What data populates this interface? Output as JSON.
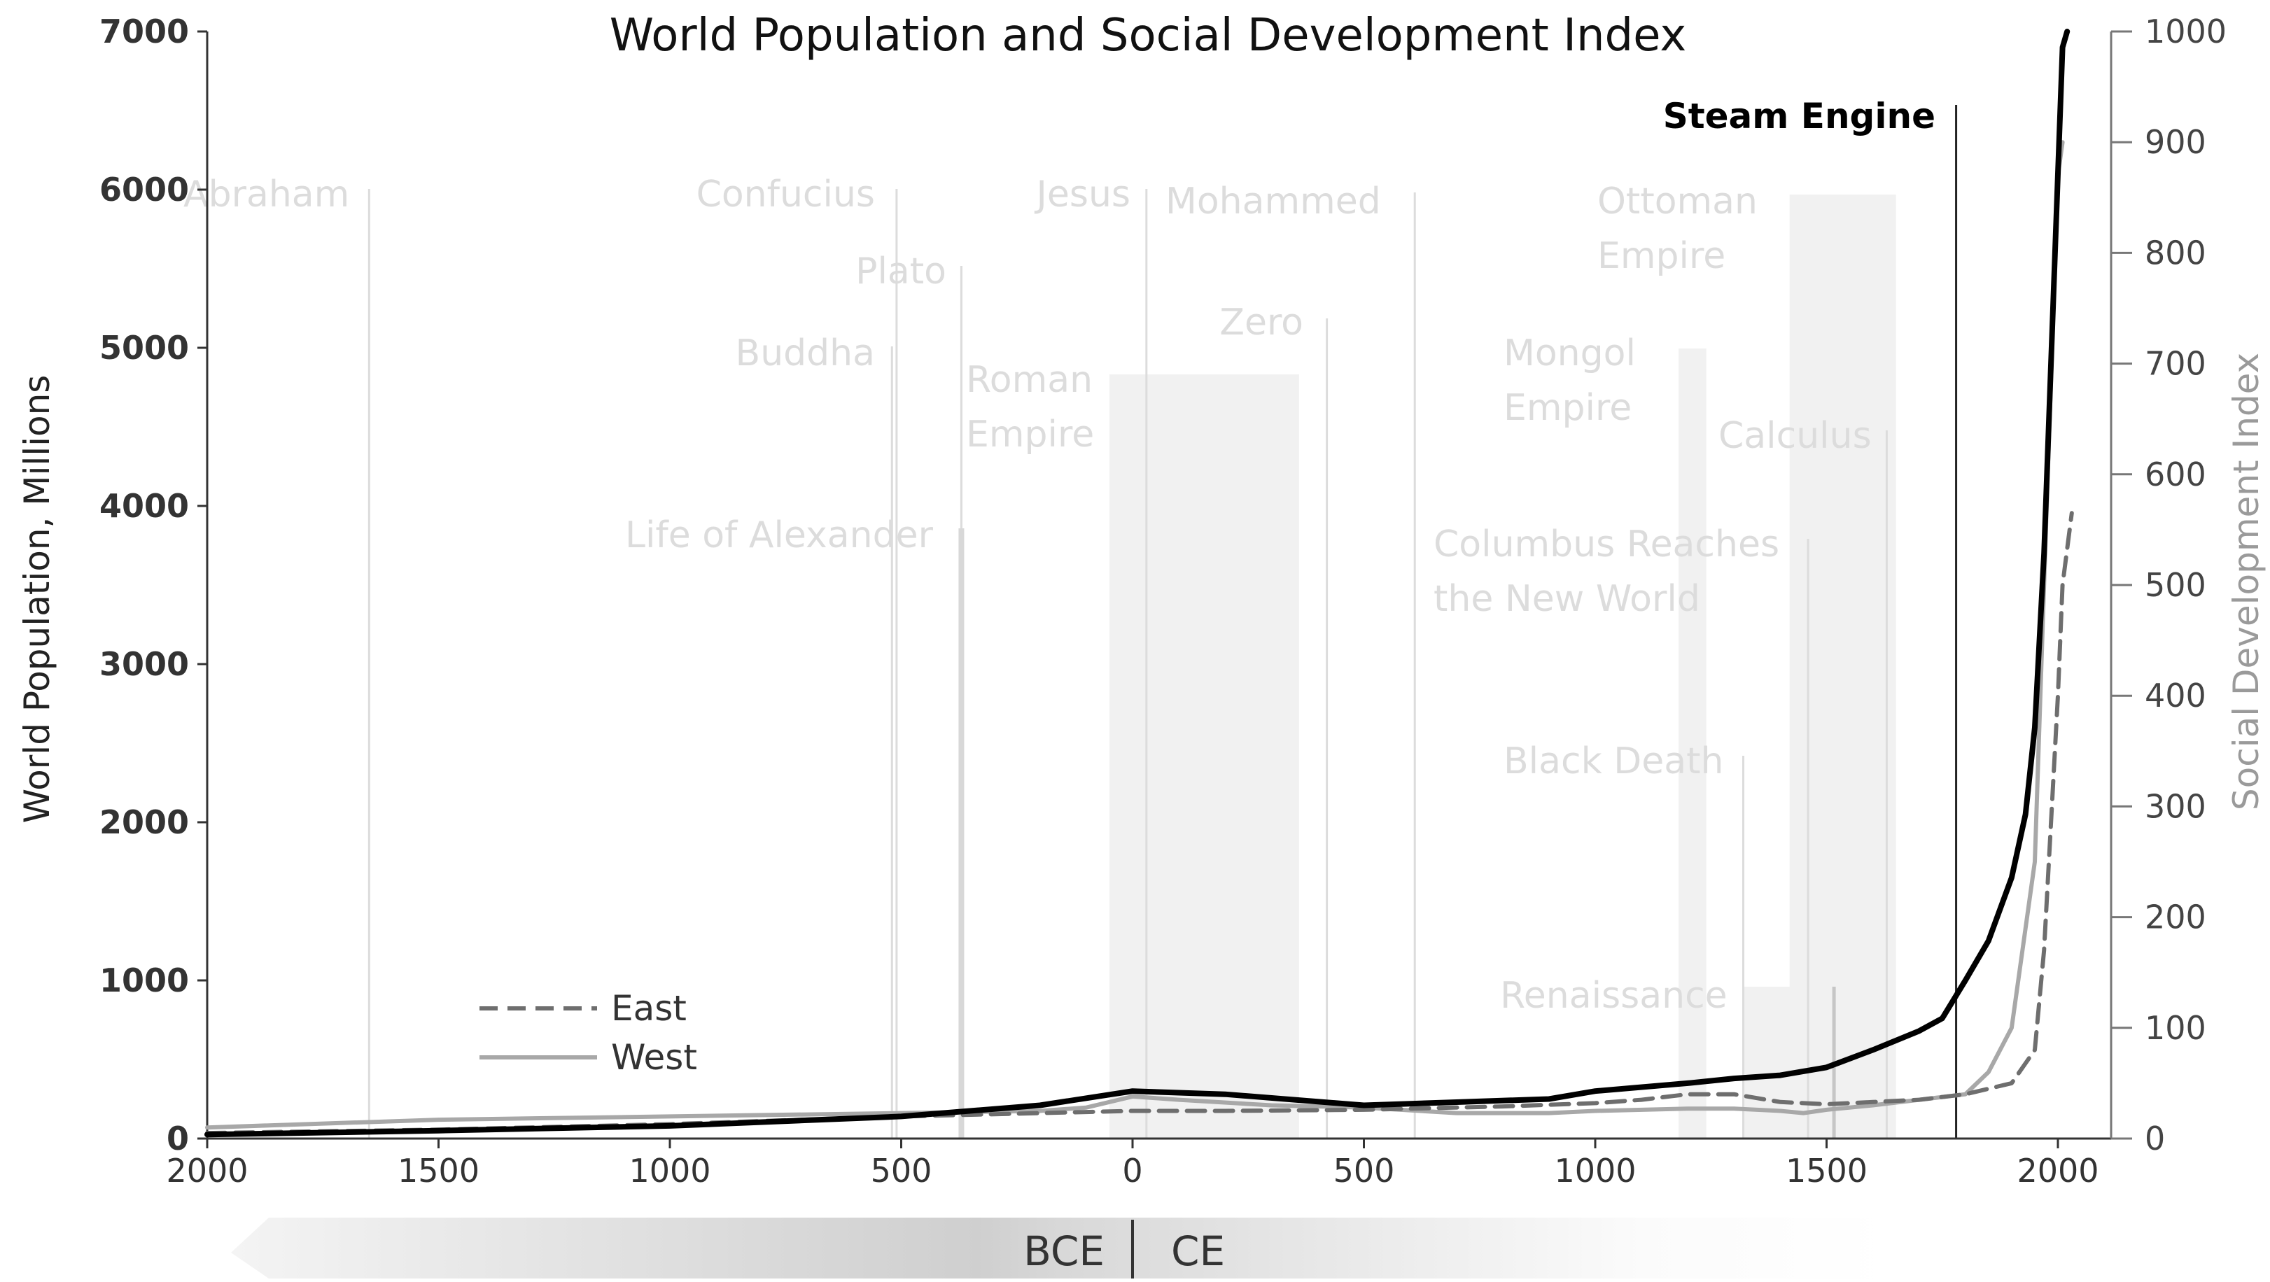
{
  "chart_data": {
    "type": "line",
    "title": "World Population and Social Development Index",
    "ylabel": "World Population, Millions",
    "y2label": "Social Development Index",
    "xlim": [
      -2000,
      2030
    ],
    "ylim": [
      0,
      7000
    ],
    "y2lim": [
      0,
      1000
    ],
    "x_tick_labels": [
      "2000",
      "1500",
      "1000",
      "500",
      "0",
      "500",
      "1000",
      "1500",
      "2000"
    ],
    "x_tick_values": [
      -2000,
      -1500,
      -1000,
      -500,
      0,
      500,
      1000,
      1500,
      2000
    ],
    "y_ticks": [
      0,
      1000,
      2000,
      3000,
      4000,
      5000,
      6000,
      7000
    ],
    "y2_ticks": [
      0,
      100,
      200,
      300,
      400,
      500,
      600,
      700,
      800,
      900,
      1000
    ],
    "era_labels": [
      "BCE",
      "CE"
    ],
    "legend": {
      "position": "bottom-left",
      "items": [
        "East",
        "West"
      ]
    },
    "grid": false,
    "series": [
      {
        "axis": "left",
        "style": "solid-black",
        "x": [
          -2000,
          -1500,
          -1000,
          -500,
          -200,
          0,
          200,
          500,
          700,
          900,
          1000,
          1200,
          1300,
          1400,
          1500,
          1600,
          1700,
          1750,
          1800,
          1850,
          1900,
          1930,
          1950,
          1970,
          1990,
          2000,
          2010,
          2020
        ],
        "values": [
          25,
          50,
          80,
          140,
          210,
          300,
          280,
          210,
          230,
          250,
          300,
          350,
          380,
          400,
          450,
          560,
          680,
          760,
          1000,
          1250,
          1650,
          2050,
          2600,
          3700,
          5300,
          6100,
          6900,
          7000
        ]
      },
      {
        "name": "East",
        "axis": "right",
        "style": "dashed-gray",
        "x": [
          -2000,
          -1500,
          -1000,
          -500,
          0,
          200,
          500,
          800,
          1000,
          1100,
          1200,
          1300,
          1400,
          1500,
          1600,
          1700,
          1800,
          1850,
          1900,
          1950,
          1970,
          2000,
          2010,
          2030
        ],
        "values": [
          5,
          8,
          13,
          20,
          25,
          25,
          26,
          29,
          32,
          35,
          40,
          40,
          33,
          31,
          33,
          35,
          40,
          45,
          50,
          80,
          170,
          400,
          500,
          565
        ]
      },
      {
        "name": "West",
        "axis": "right",
        "style": "solid-gray",
        "x": [
          -2000,
          -1500,
          -1000,
          -500,
          -200,
          -100,
          0,
          100,
          300,
          500,
          700,
          900,
          1000,
          1200,
          1300,
          1400,
          1450,
          1500,
          1600,
          1700,
          1800,
          1850,
          1900,
          1950,
          1970,
          2000,
          2010
        ],
        "values": [
          10,
          17,
          20,
          23,
          25,
          28,
          38,
          35,
          30,
          28,
          23,
          23,
          25,
          27,
          27,
          25,
          23,
          26,
          30,
          35,
          40,
          60,
          100,
          250,
          500,
          870,
          900
        ]
      }
    ],
    "events": [
      {
        "label": "Abraham",
        "x": -1650
      },
      {
        "label": "Confucius",
        "x": -510
      },
      {
        "label": "Jesus",
        "x": 30
      },
      {
        "label": "Mohammed",
        "x": 610
      },
      {
        "label": "Plato",
        "x": -370
      },
      {
        "label": "Buddha",
        "x": -520
      },
      {
        "label": "Roman",
        "label2": "Empire",
        "x": -50,
        "x_end": 360
      },
      {
        "label": "Zero",
        "x": 420
      },
      {
        "label": "Life of Alexander",
        "x": -370
      },
      {
        "label": "Ottoman",
        "label2": "Empire",
        "x": 1420,
        "x_end": 1650
      },
      {
        "label": "Mongol",
        "label2": "Empire",
        "x": 1180,
        "x_end": 1240
      },
      {
        "label": "Calculus",
        "x": 1630
      },
      {
        "label": "Columbus Reaches",
        "label2": "the New World",
        "x": 1460
      },
      {
        "label": "Black Death",
        "x": 1320
      },
      {
        "label": "Renaissance",
        "x": 1320,
        "x_end": 1510
      },
      {
        "label": "Steam Engine",
        "x": 1780,
        "emphasis": true
      }
    ]
  }
}
